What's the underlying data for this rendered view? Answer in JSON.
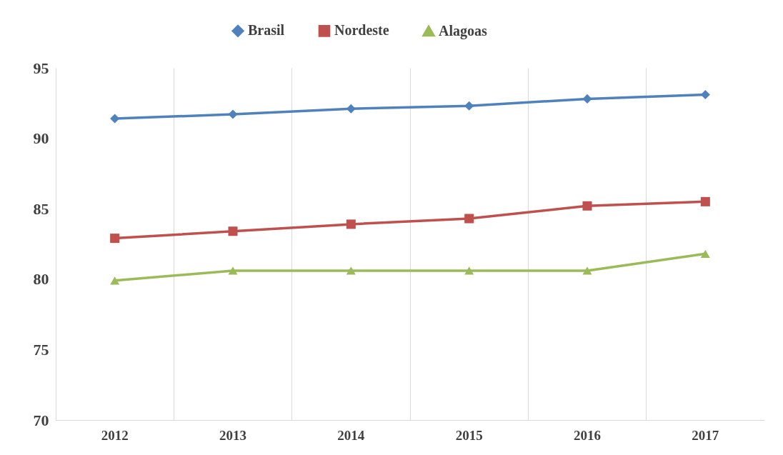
{
  "chart_data": {
    "type": "line",
    "categories": [
      "2012",
      "2013",
      "2014",
      "2015",
      "2016",
      "2017"
    ],
    "series": [
      {
        "name": "Brasil",
        "color": "#4f81bd",
        "marker": "diamond",
        "values": [
          91.4,
          91.7,
          92.1,
          92.3,
          92.8,
          93.1
        ]
      },
      {
        "name": "Nordeste",
        "color": "#c0504d",
        "marker": "square",
        "values": [
          82.9,
          83.4,
          83.9,
          84.3,
          85.2,
          85.5
        ]
      },
      {
        "name": "Alagoas",
        "color": "#9bbb59",
        "marker": "triangle",
        "values": [
          79.9,
          80.6,
          80.6,
          80.6,
          80.6,
          81.8
        ]
      }
    ],
    "ylim": [
      70,
      95
    ],
    "yticks": [
      70,
      75,
      80,
      85,
      90,
      95
    ],
    "grid": "x",
    "legend": "top",
    "line_style": "solid"
  }
}
